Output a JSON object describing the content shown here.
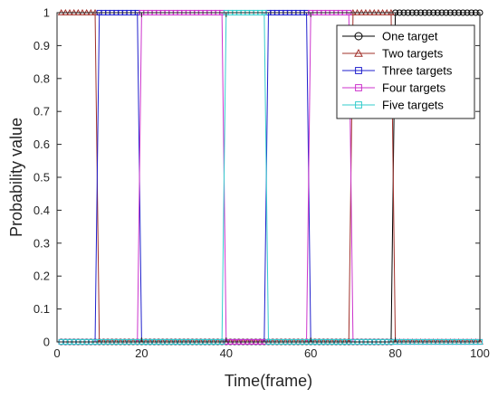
{
  "chart_data": {
    "type": "line",
    "xlabel": "Time(frame)",
    "ylabel": "Probability value",
    "xlim": [
      0,
      100
    ],
    "ylim": [
      0,
      1
    ],
    "xticks": [
      0,
      20,
      40,
      60,
      80,
      100
    ],
    "yticks": [
      0,
      0.1,
      0.2,
      0.3,
      0.4,
      0.5,
      0.6,
      0.7,
      0.8,
      0.9,
      1
    ],
    "grid": false,
    "legend_position": "top-right",
    "series": [
      {
        "name": "One target",
        "color": "#000000",
        "marker": "circle",
        "segments": [
          {
            "from": 1,
            "to": 79,
            "value": 0
          },
          {
            "from": 80,
            "to": 100,
            "value": 1
          }
        ]
      },
      {
        "name": "Two targets",
        "color": "#a0302a",
        "marker": "triangle",
        "segments": [
          {
            "from": 1,
            "to": 9,
            "value": 1
          },
          {
            "from": 10,
            "to": 69,
            "value": 0
          },
          {
            "from": 70,
            "to": 79,
            "value": 1
          },
          {
            "from": 80,
            "to": 100,
            "value": 0
          }
        ]
      },
      {
        "name": "Three targets",
        "color": "#1f1fcc",
        "marker": "square",
        "segments": [
          {
            "from": 1,
            "to": 9,
            "value": 0
          },
          {
            "from": 10,
            "to": 19,
            "value": 1
          },
          {
            "from": 20,
            "to": 49,
            "value": 0
          },
          {
            "from": 50,
            "to": 59,
            "value": 1
          },
          {
            "from": 60,
            "to": 100,
            "value": 0
          }
        ]
      },
      {
        "name": "Four targets",
        "color": "#cc33cc",
        "marker": "square",
        "segments": [
          {
            "from": 1,
            "to": 19,
            "value": 0
          },
          {
            "from": 20,
            "to": 39,
            "value": 1
          },
          {
            "from": 40,
            "to": 49,
            "value": 0
          },
          {
            "from": 50,
            "to": 59,
            "value": 0
          },
          {
            "from": 60,
            "to": 69,
            "value": 1
          },
          {
            "from": 70,
            "to": 100,
            "value": 0
          }
        ]
      },
      {
        "name": "Five targets",
        "color": "#33cccc",
        "marker": "square",
        "segments": [
          {
            "from": 1,
            "to": 39,
            "value": 0
          },
          {
            "from": 40,
            "to": 49,
            "value": 1
          },
          {
            "from": 50,
            "to": 100,
            "value": 0
          }
        ]
      }
    ]
  }
}
